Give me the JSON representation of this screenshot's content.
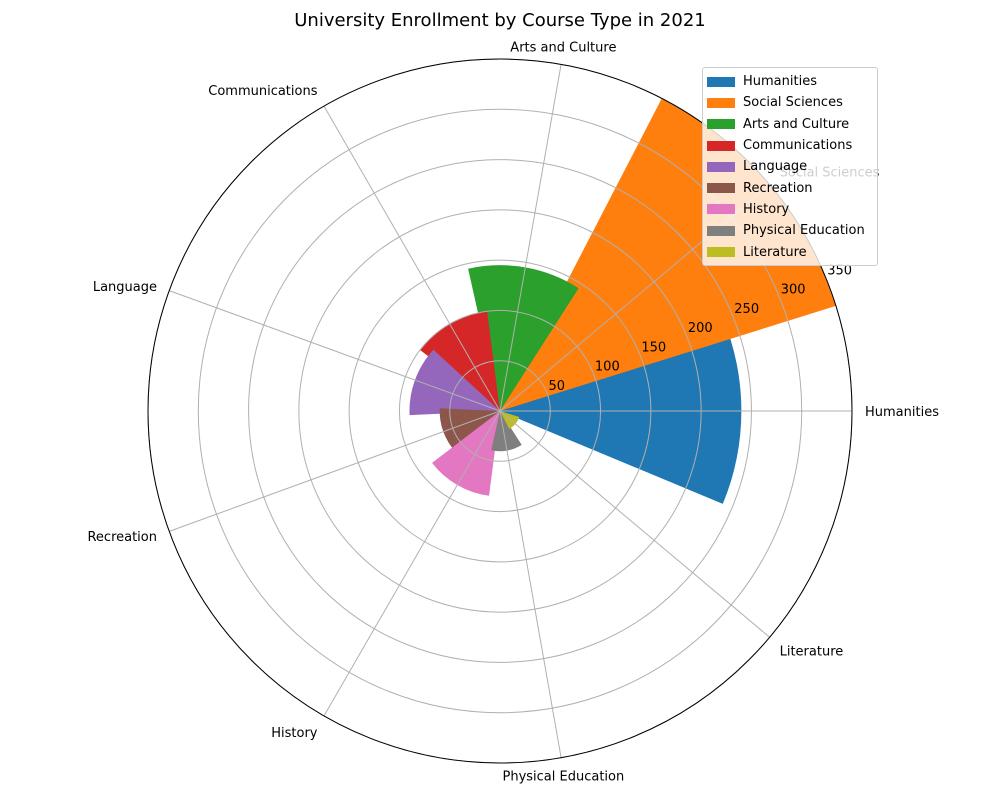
{
  "chart_data": {
    "type": "polar-bar",
    "title": "University Enrollment by Course Type in 2021",
    "categories": [
      "Humanities",
      "Social Sciences",
      "Arts and Culture",
      "Communications",
      "Language",
      "Recreation",
      "History",
      "Physical Education",
      "Literature"
    ],
    "values": [
      240,
      350,
      145,
      100,
      90,
      60,
      85,
      40,
      20
    ],
    "colors": [
      "#1f77b4",
      "#ff7f0e",
      "#2ca02c",
      "#d62728",
      "#9467bd",
      "#8c564b",
      "#e377c2",
      "#7f7f7f",
      "#bcbd22"
    ],
    "r_ticks": [
      "50",
      "100",
      "150",
      "200",
      "250",
      "300",
      "350"
    ],
    "r_tick_values": [
      50,
      100,
      150,
      200,
      250,
      300,
      350
    ],
    "rlim": [
      0,
      350
    ],
    "grid": true,
    "legend": {
      "position": "top-right",
      "entries": [
        "Humanities",
        "Social Sciences",
        "Arts and Culture",
        "Communications",
        "Language",
        "Recreation",
        "History",
        "Physical Education",
        "Literature"
      ]
    }
  }
}
